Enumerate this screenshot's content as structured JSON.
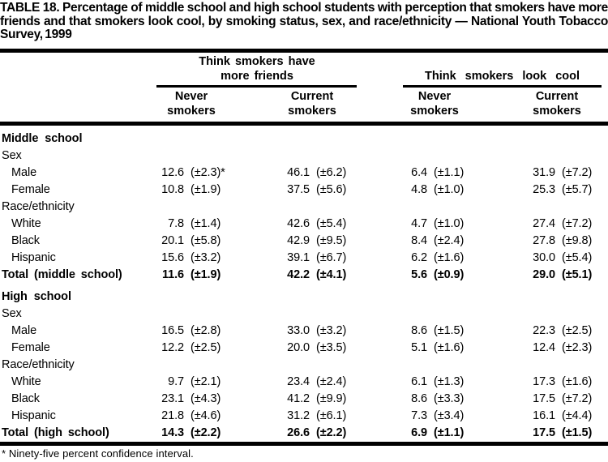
{
  "title": "TABLE 18. Percentage of middle school and high school students with perception that smokers have more friends and that smokers look cool, by smoking status, sex, and race/ethnicity — National Youth Tobacco Survey, 1999",
  "header": {
    "spanners": [
      {
        "label": "Think smokers have more friends"
      },
      {
        "label": "Think smokers look cool"
      }
    ],
    "columns": [
      "Never smokers",
      "Current smokers",
      "Never smokers",
      "Current smokers"
    ]
  },
  "table": {
    "rows": [
      {
        "label": "Middle school",
        "style": "section",
        "cells": null
      },
      {
        "label": "Sex",
        "style": "group",
        "cells": null
      },
      {
        "label": "Male",
        "style": "item",
        "cells": [
          [
            "12.6",
            "(±2.3)*"
          ],
          [
            "46.1",
            "(±6.2)"
          ],
          [
            "6.4",
            "(±1.1)"
          ],
          [
            "31.9",
            "(±7.2)"
          ]
        ]
      },
      {
        "label": "Female",
        "style": "item",
        "cells": [
          [
            "10.8",
            "(±1.9)"
          ],
          [
            "37.5",
            "(±5.6)"
          ],
          [
            "4.8",
            "(±1.0)"
          ],
          [
            "25.3",
            "(±5.7)"
          ]
        ]
      },
      {
        "label": "Race/ethnicity",
        "style": "group",
        "cells": null
      },
      {
        "label": "White",
        "style": "item",
        "cells": [
          [
            "7.8",
            "(±1.4)"
          ],
          [
            "42.6",
            "(±5.4)"
          ],
          [
            "4.7",
            "(±1.0)"
          ],
          [
            "27.4",
            "(±7.2)"
          ]
        ]
      },
      {
        "label": "Black",
        "style": "item",
        "cells": [
          [
            "20.1",
            "(±5.8)"
          ],
          [
            "42.9",
            "(±9.5)"
          ],
          [
            "8.4",
            "(±2.4)"
          ],
          [
            "27.8",
            "(±9.8)"
          ]
        ]
      },
      {
        "label": "Hispanic",
        "style": "item",
        "cells": [
          [
            "15.6",
            "(±3.2)"
          ],
          [
            "39.1",
            "(±6.7)"
          ],
          [
            "6.2",
            "(±1.6)"
          ],
          [
            "30.0",
            "(±5.4)"
          ]
        ]
      },
      {
        "label": "Total (middle school)",
        "style": "total",
        "cells": [
          [
            "11.6",
            "(±1.9)"
          ],
          [
            "42.2",
            "(±4.1)"
          ],
          [
            "5.6",
            "(±0.9)"
          ],
          [
            "29.0",
            "(±5.1)"
          ]
        ]
      },
      {
        "label": "",
        "style": "spacer",
        "cells": null
      },
      {
        "label": "High school",
        "style": "section",
        "cells": null
      },
      {
        "label": "Sex",
        "style": "group",
        "cells": null
      },
      {
        "label": "Male",
        "style": "item",
        "cells": [
          [
            "16.5",
            "(±2.8)"
          ],
          [
            "33.0",
            "(±3.2)"
          ],
          [
            "8.6",
            "(±1.5)"
          ],
          [
            "22.3",
            "(±2.5)"
          ]
        ]
      },
      {
        "label": "Female",
        "style": "item",
        "cells": [
          [
            "12.2",
            "(±2.5)"
          ],
          [
            "20.0",
            "(±3.5)"
          ],
          [
            "5.1",
            "(±1.6)"
          ],
          [
            "12.4",
            "(±2.3)"
          ]
        ]
      },
      {
        "label": "Race/ethnicity",
        "style": "group",
        "cells": null
      },
      {
        "label": "White",
        "style": "item",
        "cells": [
          [
            "9.7",
            "(±2.1)"
          ],
          [
            "23.4",
            "(±2.4)"
          ],
          [
            "6.1",
            "(±1.3)"
          ],
          [
            "17.3",
            "(±1.6)"
          ]
        ]
      },
      {
        "label": "Black",
        "style": "item",
        "cells": [
          [
            "23.1",
            "(±4.3)"
          ],
          [
            "41.2",
            "(±9.9)"
          ],
          [
            "8.6",
            "(±3.3)"
          ],
          [
            "17.5",
            "(±7.2)"
          ]
        ]
      },
      {
        "label": "Hispanic",
        "style": "item",
        "cells": [
          [
            "21.8",
            "(±4.6)"
          ],
          [
            "31.2",
            "(±6.1)"
          ],
          [
            "7.3",
            "(±3.4)"
          ],
          [
            "16.1",
            "(±4.4)"
          ]
        ]
      },
      {
        "label": "Total (high school)",
        "style": "total",
        "cells": [
          [
            "14.3",
            "(±2.2)"
          ],
          [
            "26.6",
            "(±2.2)"
          ],
          [
            "6.9",
            "(±1.1)"
          ],
          [
            "17.5",
            "(±1.5)"
          ]
        ]
      }
    ]
  },
  "footnote": "* Ninety-five percent confidence interval.",
  "colors": {
    "text": "#000000",
    "background": "#ffffff",
    "rule": "#000000"
  }
}
